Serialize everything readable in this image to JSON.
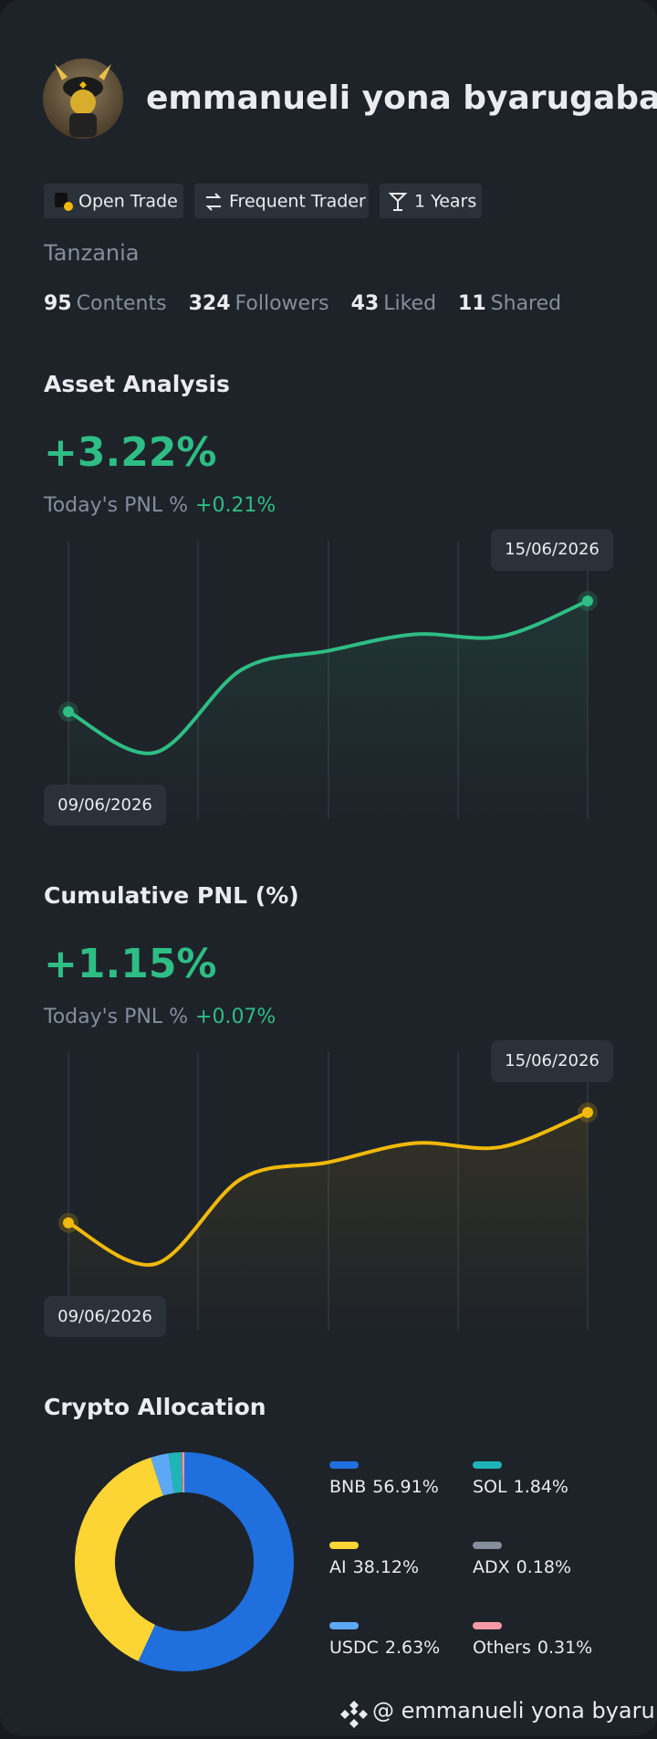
{
  "profile": {
    "name": "emmanueli yona byarugaba",
    "badges": [
      "Open Trade",
      "Frequent Trader",
      "1 Years"
    ],
    "country": "Tanzania",
    "stats": [
      {
        "value": 95,
        "label": "Contents"
      },
      {
        "value": 324,
        "label": "Followers"
      },
      {
        "value": 43,
        "label": "Liked"
      },
      {
        "value": 11,
        "label": "Shared"
      }
    ]
  },
  "chart_data": [
    {
      "type": "line",
      "title": "Asset Analysis",
      "headline": "+3.22%",
      "pnl_label": "Today's PNL %",
      "pnl_value": "+0.21%",
      "categories": [
        "09/06/2026",
        null,
        null,
        null,
        null,
        null,
        "15/06/2026"
      ],
      "values": [
        0,
        -1.19,
        1.22,
        1.77,
        2.25,
        2.19,
        3.22
      ],
      "color": "#2ebd85"
    },
    {
      "type": "line",
      "title": "Cumulative PNL (%)",
      "headline": "+1.15%",
      "pnl_label": "Today's PNL %",
      "pnl_value": "+0.07%",
      "categories": [
        "09/06/2026",
        null,
        null,
        null,
        null,
        null,
        "15/06/2026"
      ],
      "values": [
        0,
        -0.43,
        0.46,
        0.63,
        0.83,
        0.79,
        1.15
      ],
      "color": "#f0b90b"
    },
    {
      "type": "pie",
      "title": "Crypto Allocation",
      "categories": [
        "BNB",
        "AI",
        "USDC",
        "SOL",
        "ADX",
        "Others"
      ],
      "values": [
        56.91,
        38.12,
        2.63,
        1.84,
        0.18,
        0.31
      ],
      "value_labels": [
        "56.91%",
        "38.12%",
        "2.63%",
        "1.84%",
        "0.18%",
        "0.31%"
      ],
      "colors": [
        "#1f6fde",
        "#fcd535",
        "#5da8f5",
        "#1fb5b8",
        "#848e9c",
        "#f59aa4"
      ]
    }
  ],
  "footer": "@ emmanueli yona byaru…"
}
